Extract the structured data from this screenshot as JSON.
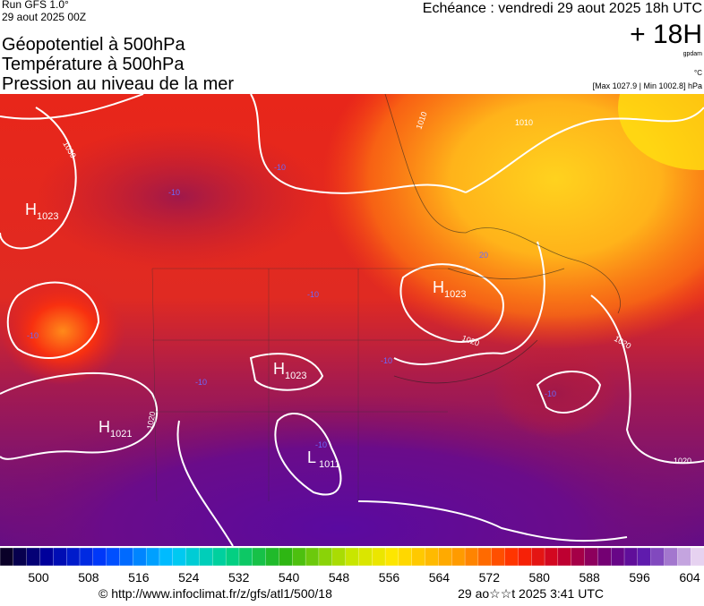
{
  "header": {
    "run": "Run GFS 1.0°",
    "run_date": "29 aout 2025 00Z",
    "fields": [
      "Géopotentiel à 500hPa",
      "Température à 500hPa",
      "Pression au niveau de la mer"
    ],
    "echeance": "Echéance : vendredi 29 aout 2025 18h UTC",
    "lead": "+ 18H",
    "unit_geo": "gpdam",
    "unit_temp": "°C",
    "pressure_range": "[Max 1027.9 | Min 1002.8] hPa"
  },
  "map": {
    "pressure_centers": [
      {
        "symbol": "H",
        "value": "1023"
      },
      {
        "symbol": "H",
        "value": "1021"
      },
      {
        "symbol": "H",
        "value": "1023"
      },
      {
        "symbol": "H",
        "value": "1023"
      },
      {
        "symbol": "L",
        "value": "1011"
      }
    ],
    "isobar_labels": [
      "1030",
      "1010",
      "1010",
      "1020",
      "1020",
      "1020",
      "1020"
    ],
    "isotherm_labels": [
      "-10",
      "-10",
      "-10",
      "-10",
      "-10",
      "-10",
      "-10",
      "-10",
      "20"
    ]
  },
  "colorbar": {
    "labels": [
      500,
      508,
      516,
      524,
      532,
      540,
      548,
      556,
      564,
      572,
      580,
      588,
      596,
      604
    ]
  },
  "footer": {
    "source": "© http://www.infoclimat.fr/z/gfs/atl1/500/18",
    "generated": "29 ao☆☆t 2025  3:41 UTC"
  }
}
